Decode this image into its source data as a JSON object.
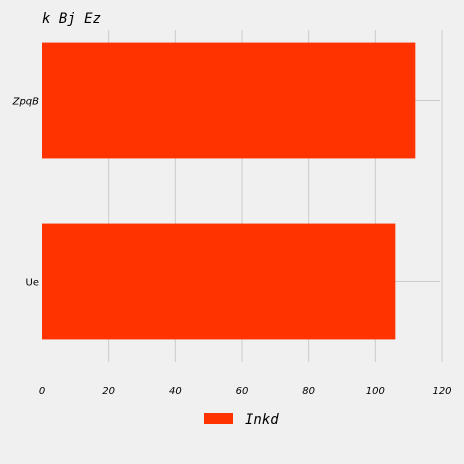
{
  "chart_data": {
    "type": "bar",
    "orientation": "horizontal",
    "title": "k Bj Ez",
    "categories": [
      "Ue",
      "ZpqB"
    ],
    "series": [
      {
        "name": "Inkd",
        "values": [
          106,
          112
        ],
        "color": "#ff3300"
      }
    ],
    "xlim": [
      0,
      120
    ],
    "xticks": [
      0,
      20,
      40,
      60,
      80,
      100,
      120
    ],
    "grid": true,
    "legend_position": "bottom-center",
    "background": "#f0f0f0"
  }
}
